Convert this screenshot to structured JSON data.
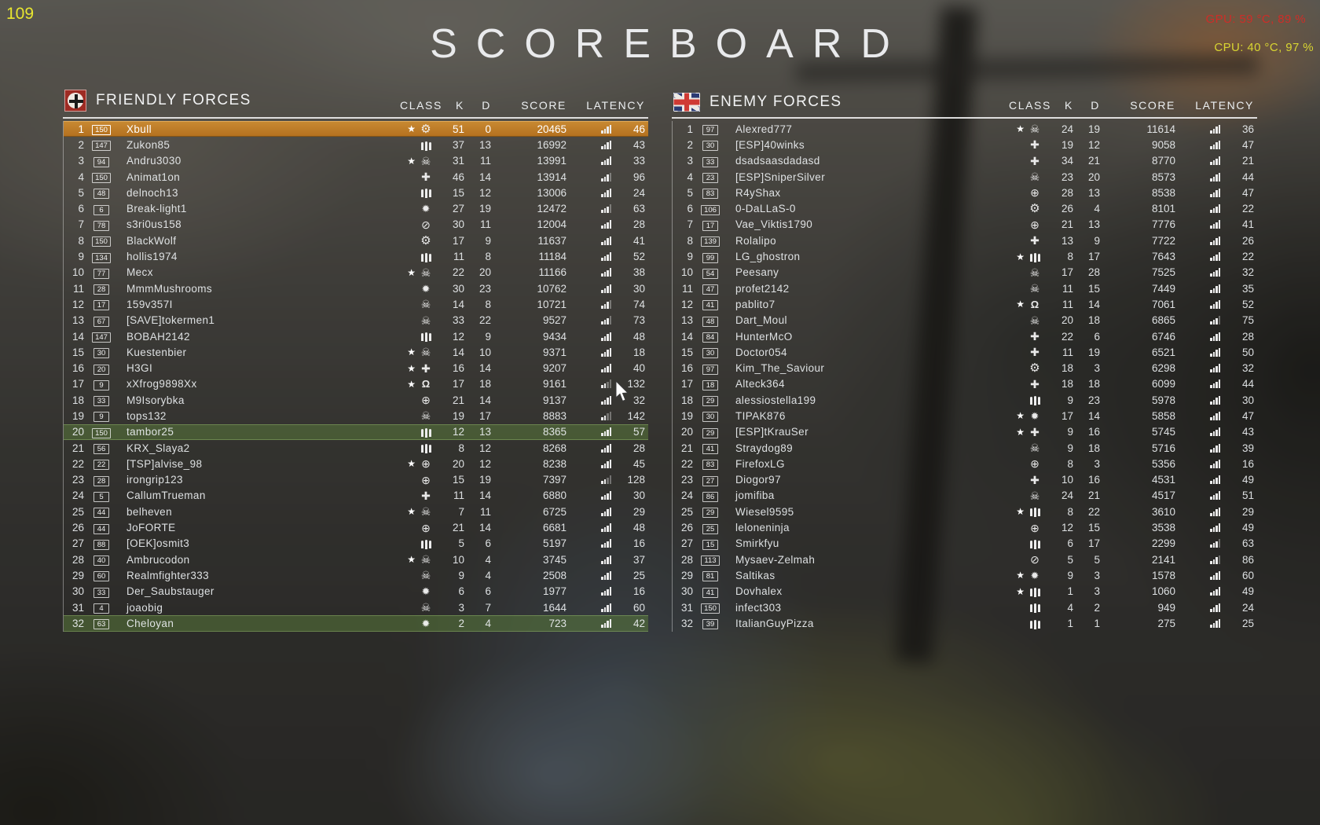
{
  "hud": {
    "fps": "109",
    "gpu": "GPU: 59 °C, 89 %",
    "cpu": "CPU: 40 °C, 97 %"
  },
  "title": "SCOREBOARD",
  "columns": {
    "class": "CLASS",
    "kills": "K",
    "deaths": "D",
    "score": "SCORE",
    "latency": "LATENCY"
  },
  "colors": {
    "self_highlight": "#c07b28",
    "squad_highlight": "#5c803c",
    "fps_yellow": "#e8e630",
    "gpu_red": "#cd2d28",
    "cpu_yellow": "#d8d532",
    "row_text": "#eceff1"
  },
  "class_glyphs": {
    "star": "★",
    "assault": "✹",
    "medic": "✚",
    "scout": "☠",
    "tanker": "⚙",
    "pilot": "⊕",
    "driver": "⊘",
    "cavalry": "Ω",
    "support": "|||"
  },
  "teams": [
    {
      "name": "FRIENDLY FORCES",
      "emblem": "german-cross-flag",
      "players": [
        {
          "rank": 1,
          "level": 150,
          "name": "Xbull",
          "star": true,
          "class": "tanker",
          "k": 51,
          "d": 0,
          "score": 20465,
          "latency": 46,
          "highlight": "self"
        },
        {
          "rank": 2,
          "level": 147,
          "name": "Zukon85",
          "star": false,
          "class": "support",
          "k": 37,
          "d": 13,
          "score": 16992,
          "latency": 43
        },
        {
          "rank": 3,
          "level": 94,
          "name": "Andru3030",
          "star": true,
          "class": "scout",
          "k": 31,
          "d": 11,
          "score": 13991,
          "latency": 33
        },
        {
          "rank": 4,
          "level": 150,
          "name": "Animat1on",
          "star": false,
          "class": "medic",
          "k": 46,
          "d": 14,
          "score": 13914,
          "latency": 96
        },
        {
          "rank": 5,
          "level": 48,
          "name": "delnoch13",
          "star": false,
          "class": "support",
          "k": 15,
          "d": 12,
          "score": 13006,
          "latency": 24
        },
        {
          "rank": 6,
          "level": 6,
          "name": "Break-light1",
          "star": false,
          "class": "assault",
          "k": 27,
          "d": 19,
          "score": 12472,
          "latency": 63
        },
        {
          "rank": 7,
          "level": 78,
          "name": "s3ri0us158",
          "star": false,
          "class": "driver",
          "k": 30,
          "d": 11,
          "score": 12004,
          "latency": 28
        },
        {
          "rank": 8,
          "level": 150,
          "name": "BlackWolf",
          "star": false,
          "class": "tanker",
          "k": 17,
          "d": 9,
          "score": 11637,
          "latency": 41
        },
        {
          "rank": 9,
          "level": 134,
          "name": "hollis1974",
          "star": false,
          "class": "support",
          "k": 11,
          "d": 8,
          "score": 11184,
          "latency": 52
        },
        {
          "rank": 10,
          "level": 77,
          "name": "Mecx",
          "star": true,
          "class": "scout",
          "k": 22,
          "d": 20,
          "score": 11166,
          "latency": 38
        },
        {
          "rank": 11,
          "level": 28,
          "name": "MmmMushrooms",
          "star": false,
          "class": "assault",
          "k": 30,
          "d": 23,
          "score": 10762,
          "latency": 30
        },
        {
          "rank": 12,
          "level": 17,
          "name": "159v357I",
          "star": false,
          "class": "scout",
          "k": 14,
          "d": 8,
          "score": 10721,
          "latency": 74
        },
        {
          "rank": 13,
          "level": 67,
          "name": "[SAVE]tokermen1",
          "star": false,
          "class": "scout",
          "k": 33,
          "d": 22,
          "score": 9527,
          "latency": 73
        },
        {
          "rank": 14,
          "level": 147,
          "name": "BOBAH2142",
          "star": false,
          "class": "support",
          "k": 12,
          "d": 9,
          "score": 9434,
          "latency": 48
        },
        {
          "rank": 15,
          "level": 30,
          "name": "Kuestenbier",
          "star": true,
          "class": "scout",
          "k": 14,
          "d": 10,
          "score": 9371,
          "latency": 18
        },
        {
          "rank": 16,
          "level": 20,
          "name": "H3GI",
          "star": true,
          "class": "medic",
          "k": 16,
          "d": 14,
          "score": 9207,
          "latency": 40
        },
        {
          "rank": 17,
          "level": 9,
          "name": "xXfrog9898Xx",
          "star": true,
          "class": "cavalry",
          "k": 17,
          "d": 18,
          "score": 9161,
          "latency": 132
        },
        {
          "rank": 18,
          "level": 33,
          "name": "M9Isorybka",
          "star": false,
          "class": "pilot",
          "k": 21,
          "d": 14,
          "score": 9137,
          "latency": 32
        },
        {
          "rank": 19,
          "level": 9,
          "name": "tops132",
          "star": false,
          "class": "scout",
          "k": 19,
          "d": 17,
          "score": 8883,
          "latency": 142
        },
        {
          "rank": 20,
          "level": 150,
          "name": "tambor25",
          "star": false,
          "class": "support",
          "k": 12,
          "d": 13,
          "score": 8365,
          "latency": 57,
          "highlight": "squad"
        },
        {
          "rank": 21,
          "level": 56,
          "name": "KRX_Slaya2",
          "star": false,
          "class": "support",
          "k": 8,
          "d": 12,
          "score": 8268,
          "latency": 28
        },
        {
          "rank": 22,
          "level": 22,
          "name": "[TSP]alvise_98",
          "star": true,
          "class": "pilot",
          "k": 20,
          "d": 12,
          "score": 8238,
          "latency": 45
        },
        {
          "rank": 23,
          "level": 28,
          "name": "irongrip123",
          "star": false,
          "class": "pilot",
          "k": 15,
          "d": 19,
          "score": 7397,
          "latency": 128
        },
        {
          "rank": 24,
          "level": 5,
          "name": "CallumTrueman",
          "star": false,
          "class": "medic",
          "k": 11,
          "d": 14,
          "score": 6880,
          "latency": 30
        },
        {
          "rank": 25,
          "level": 44,
          "name": "belheven",
          "star": true,
          "class": "scout",
          "k": 7,
          "d": 11,
          "score": 6725,
          "latency": 29
        },
        {
          "rank": 26,
          "level": 44,
          "name": "JoFORTE",
          "star": false,
          "class": "pilot",
          "k": 21,
          "d": 14,
          "score": 6681,
          "latency": 48
        },
        {
          "rank": 27,
          "level": 88,
          "name": "[OEK]osmit3",
          "star": false,
          "class": "support",
          "k": 5,
          "d": 6,
          "score": 5197,
          "latency": 16
        },
        {
          "rank": 28,
          "level": 40,
          "name": "Ambrucodon",
          "star": true,
          "class": "scout",
          "k": 10,
          "d": 4,
          "score": 3745,
          "latency": 37
        },
        {
          "rank": 29,
          "level": 60,
          "name": "Realmfighter333",
          "star": false,
          "class": "scout",
          "k": 9,
          "d": 4,
          "score": 2508,
          "latency": 25
        },
        {
          "rank": 30,
          "level": 33,
          "name": "Der_Saubstauger",
          "star": false,
          "class": "assault",
          "k": 6,
          "d": 6,
          "score": 1977,
          "latency": 16
        },
        {
          "rank": 31,
          "level": 4,
          "name": "joaobig",
          "star": false,
          "class": "scout",
          "k": 3,
          "d": 7,
          "score": 1644,
          "latency": 60
        },
        {
          "rank": 32,
          "level": 63,
          "name": "Cheloyan",
          "star": false,
          "class": "assault",
          "k": 2,
          "d": 4,
          "score": 723,
          "latency": 42,
          "highlight": "squad"
        }
      ]
    },
    {
      "name": "ENEMY FORCES",
      "emblem": "union-jack-flag",
      "players": [
        {
          "rank": 1,
          "level": 97,
          "name": "Alexred777",
          "star": true,
          "class": "scout",
          "k": 24,
          "d": 19,
          "score": 11614,
          "latency": 36
        },
        {
          "rank": 2,
          "level": 30,
          "name": "[ESP]40winks",
          "star": false,
          "class": "medic",
          "k": 19,
          "d": 12,
          "score": 9058,
          "latency": 47
        },
        {
          "rank": 3,
          "level": 33,
          "name": "dsadsaasdadasd",
          "star": false,
          "class": "medic",
          "k": 34,
          "d": 21,
          "score": 8770,
          "latency": 21
        },
        {
          "rank": 4,
          "level": 23,
          "name": "[ESP]SniperSilver",
          "star": false,
          "class": "scout",
          "k": 23,
          "d": 20,
          "score": 8573,
          "latency": 44
        },
        {
          "rank": 5,
          "level": 83,
          "name": "R4yShax",
          "star": false,
          "class": "pilot",
          "k": 28,
          "d": 13,
          "score": 8538,
          "latency": 47
        },
        {
          "rank": 6,
          "level": 106,
          "name": "0-DaLLaS-0",
          "star": false,
          "class": "tanker",
          "k": 26,
          "d": 4,
          "score": 8101,
          "latency": 22
        },
        {
          "rank": 7,
          "level": 17,
          "name": "Vae_Viktis1790",
          "star": false,
          "class": "pilot",
          "k": 21,
          "d": 13,
          "score": 7776,
          "latency": 41
        },
        {
          "rank": 8,
          "level": 139,
          "name": "Rolalipo",
          "star": false,
          "class": "medic",
          "k": 13,
          "d": 9,
          "score": 7722,
          "latency": 26
        },
        {
          "rank": 9,
          "level": 99,
          "name": "LG_ghostron",
          "star": true,
          "class": "support",
          "k": 8,
          "d": 17,
          "score": 7643,
          "latency": 22
        },
        {
          "rank": 10,
          "level": 54,
          "name": "Peesany",
          "star": false,
          "class": "scout",
          "k": 17,
          "d": 28,
          "score": 7525,
          "latency": 32
        },
        {
          "rank": 11,
          "level": 47,
          "name": "profet2142",
          "star": false,
          "class": "scout",
          "k": 11,
          "d": 15,
          "score": 7449,
          "latency": 35
        },
        {
          "rank": 12,
          "level": 41,
          "name": "pablito7",
          "star": true,
          "class": "cavalry",
          "k": 11,
          "d": 14,
          "score": 7061,
          "latency": 52
        },
        {
          "rank": 13,
          "level": 48,
          "name": "Dart_Moul",
          "star": false,
          "class": "scout",
          "k": 20,
          "d": 18,
          "score": 6865,
          "latency": 75
        },
        {
          "rank": 14,
          "level": 84,
          "name": "HunterMcO",
          "star": false,
          "class": "medic",
          "k": 22,
          "d": 6,
          "score": 6746,
          "latency": 28
        },
        {
          "rank": 15,
          "level": 30,
          "name": "Doctor054",
          "star": false,
          "class": "medic",
          "k": 11,
          "d": 19,
          "score": 6521,
          "latency": 50
        },
        {
          "rank": 16,
          "level": 97,
          "name": "Kim_The_Saviour",
          "star": false,
          "class": "tanker",
          "k": 18,
          "d": 3,
          "score": 6298,
          "latency": 32
        },
        {
          "rank": 17,
          "level": 18,
          "name": "Alteck364",
          "star": false,
          "class": "medic",
          "k": 18,
          "d": 18,
          "score": 6099,
          "latency": 44
        },
        {
          "rank": 18,
          "level": 29,
          "name": "alessiostella199",
          "star": false,
          "class": "support",
          "k": 9,
          "d": 23,
          "score": 5978,
          "latency": 30
        },
        {
          "rank": 19,
          "level": 30,
          "name": "TIPAK876",
          "star": true,
          "class": "assault",
          "k": 17,
          "d": 14,
          "score": 5858,
          "latency": 47
        },
        {
          "rank": 20,
          "level": 29,
          "name": "[ESP]tKrauSer",
          "star": true,
          "class": "medic",
          "k": 9,
          "d": 16,
          "score": 5745,
          "latency": 43
        },
        {
          "rank": 21,
          "level": 41,
          "name": "Straydog89",
          "star": false,
          "class": "scout",
          "k": 9,
          "d": 18,
          "score": 5716,
          "latency": 39
        },
        {
          "rank": 22,
          "level": 83,
          "name": "FirefoxLG",
          "star": false,
          "class": "pilot",
          "k": 8,
          "d": 3,
          "score": 5356,
          "latency": 16
        },
        {
          "rank": 23,
          "level": 27,
          "name": "Diogor97",
          "star": false,
          "class": "medic",
          "k": 10,
          "d": 16,
          "score": 4531,
          "latency": 49
        },
        {
          "rank": 24,
          "level": 86,
          "name": "jomifiba",
          "star": false,
          "class": "scout",
          "k": 24,
          "d": 21,
          "score": 4517,
          "latency": 51
        },
        {
          "rank": 25,
          "level": 29,
          "name": "Wiesel9595",
          "star": true,
          "class": "support",
          "k": 8,
          "d": 22,
          "score": 3610,
          "latency": 29
        },
        {
          "rank": 26,
          "level": 25,
          "name": "leloneninja",
          "star": false,
          "class": "pilot",
          "k": 12,
          "d": 15,
          "score": 3538,
          "latency": 49
        },
        {
          "rank": 27,
          "level": 15,
          "name": "Smirkfyu",
          "star": false,
          "class": "support",
          "k": 6,
          "d": 17,
          "score": 2299,
          "latency": 63
        },
        {
          "rank": 28,
          "level": 113,
          "name": "Mysaev-Zelmah",
          "star": false,
          "class": "driver",
          "k": 5,
          "d": 5,
          "score": 2141,
          "latency": 86
        },
        {
          "rank": 29,
          "level": 81,
          "name": "Saltikas",
          "star": true,
          "class": "assault",
          "k": 9,
          "d": 3,
          "score": 1578,
          "latency": 60
        },
        {
          "rank": 30,
          "level": 41,
          "name": "Dovhalex",
          "star": true,
          "class": "support",
          "k": 1,
          "d": 3,
          "score": 1060,
          "latency": 49
        },
        {
          "rank": 31,
          "level": 150,
          "name": "infect303",
          "star": false,
          "class": "support",
          "k": 4,
          "d": 2,
          "score": 949,
          "latency": 24
        },
        {
          "rank": 32,
          "level": 39,
          "name": "ItalianGuyPizza",
          "star": false,
          "class": "support",
          "k": 1,
          "d": 1,
          "score": 275,
          "latency": 25
        }
      ]
    }
  ]
}
